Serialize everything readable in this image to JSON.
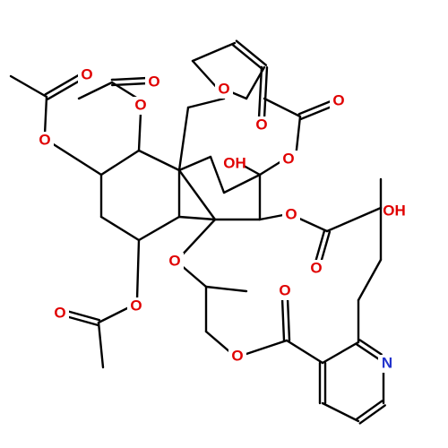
{
  "atoms": [
    {
      "label": "O"
    },
    {
      "label": "O"
    },
    {
      "label": "O"
    },
    {
      "label": "O"
    },
    {
      "label": "O"
    },
    {
      "label": "O"
    },
    {
      "label": "O"
    },
    {
      "label": "OH"
    },
    {
      "label": "O"
    },
    {
      "label": "O"
    },
    {
      "label": "OH"
    },
    {
      "label": "O"
    },
    {
      "label": "O"
    },
    {
      "label": "O"
    },
    {
      "label": "O"
    },
    {
      "label": "O"
    },
    {
      "label": "O"
    },
    {
      "label": "N"
    }
  ]
}
